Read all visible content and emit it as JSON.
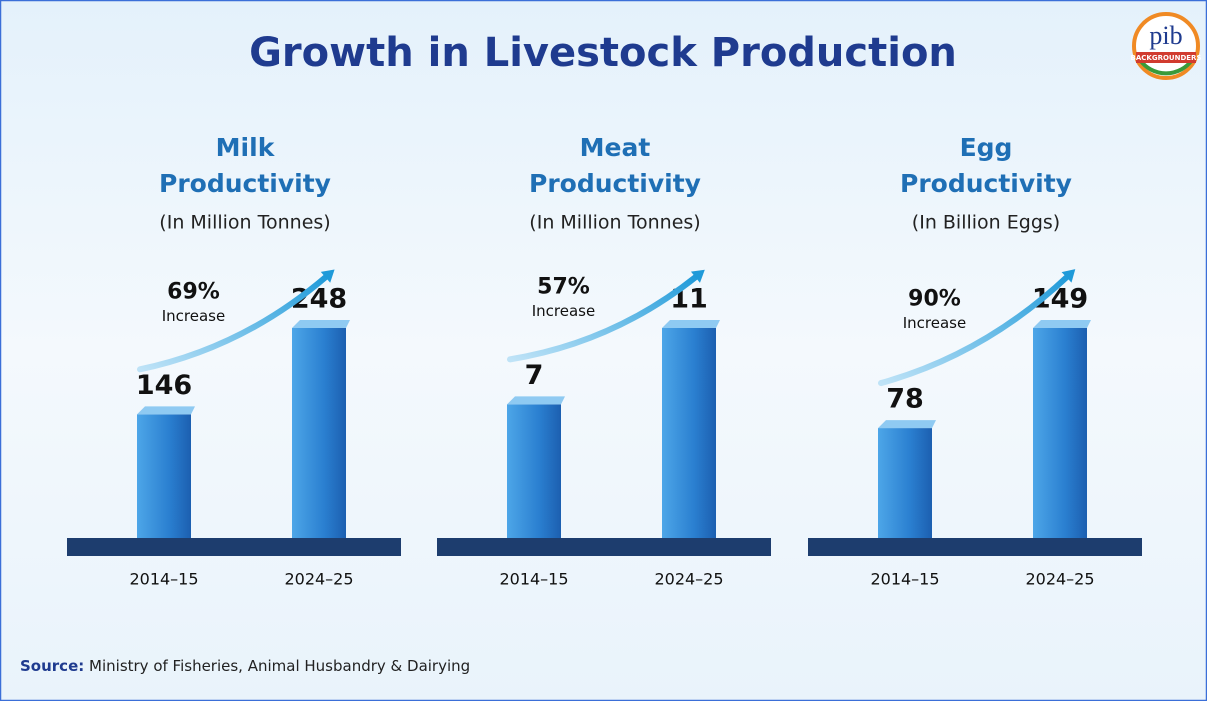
{
  "title": "Growth in Livestock Production",
  "logo": {
    "name": "pib",
    "tag": "BACKGROUNDERS"
  },
  "source": {
    "label": "Source:",
    "text": "Ministry of Fisheries, Animal Husbandry & Dairying"
  },
  "chart_data": [
    {
      "type": "bar",
      "title": "Milk",
      "title2": "Productivity",
      "subtitle": "(In Million Tonnes)",
      "categories": [
        "2014–15",
        "2024–25"
      ],
      "values": [
        146,
        248
      ],
      "color": "#2a7fd0",
      "change": "69%",
      "change_label": "Increase"
    },
    {
      "type": "bar",
      "title": "Meat",
      "title2": "Productivity",
      "subtitle": "(In Million Tonnes)",
      "categories": [
        "2014–15",
        "2024–25"
      ],
      "values": [
        7,
        11
      ],
      "color": "#2a7fd0",
      "change": "57%",
      "change_label": "Increase"
    },
    {
      "type": "bar",
      "title": "Egg",
      "title2": "Productivity",
      "subtitle": "(In Billion Eggs)",
      "categories": [
        "2014–15",
        "2024–25"
      ],
      "values": [
        78,
        149
      ],
      "color": "#2a7fd0",
      "change": "90%",
      "change_label": "Increase"
    }
  ]
}
